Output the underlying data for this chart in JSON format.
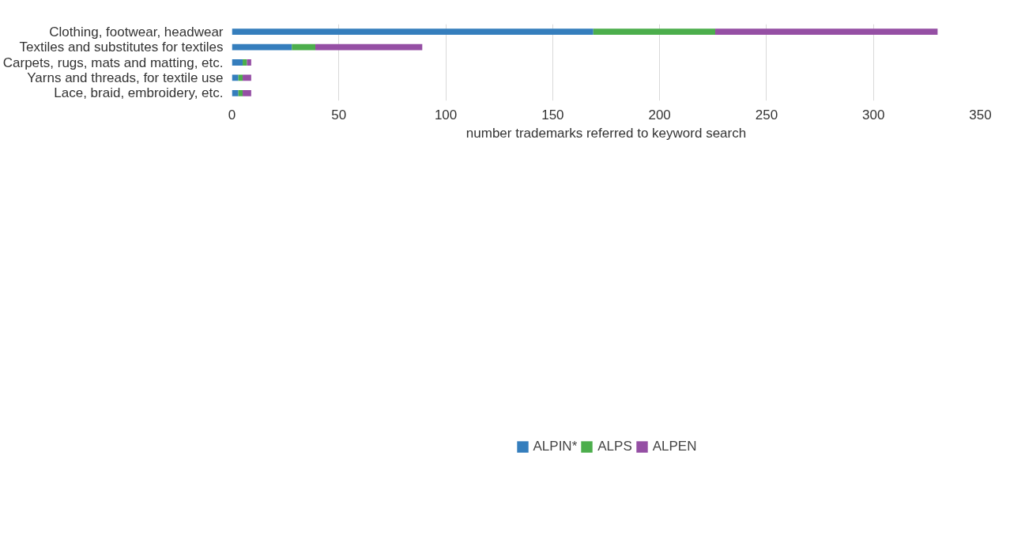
{
  "chart_data": {
    "type": "bar",
    "orientation": "horizontal",
    "stacked": true,
    "categories": [
      "Clothing, footwear, headwear",
      "Textiles and substitutes for textiles",
      "Carpets, rugs, mats and matting, etc.",
      "Yarns and threads, for textile use",
      "Lace, braid, embroidery, etc."
    ],
    "series": [
      {
        "name": "ALPIN*",
        "color": "#357ebd",
        "values": [
          169,
          28,
          5,
          3,
          3
        ]
      },
      {
        "name": "ALPS",
        "color": "#4cae4c",
        "values": [
          57,
          11,
          2,
          2,
          2
        ]
      },
      {
        "name": "ALPEN",
        "color": "#954fa4",
        "values": [
          104,
          50,
          2,
          4,
          4
        ]
      }
    ],
    "xlabel": "number trademarks referred to keyword search",
    "xlim": [
      0,
      350
    ],
    "xticks": [
      0,
      50,
      100,
      150,
      200,
      250,
      300,
      350
    ],
    "grid": "x",
    "legend": "bottom"
  }
}
